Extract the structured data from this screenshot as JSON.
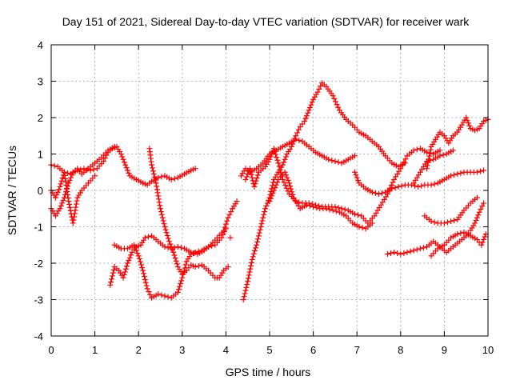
{
  "chart_data": {
    "type": "scatter",
    "title": "Day 151 of 2021, Sidereal Day-to-day VTEC variation (SDTVAR) for receiver wark",
    "xlabel": "GPS time / hours",
    "ylabel": "SDTVAR / TECUs",
    "xlim": [
      0,
      10
    ],
    "ylim": [
      -4,
      4
    ],
    "xticks": [
      "0",
      "1",
      "2",
      "3",
      "4",
      "5",
      "6",
      "7",
      "8",
      "9",
      "10"
    ],
    "yticks": [
      "-4",
      "-3",
      "-2",
      "-1",
      "0",
      "1",
      "2",
      "3",
      "4"
    ],
    "grid": true,
    "marker": "+",
    "color": "#ff0000",
    "series": [
      {
        "points": [
          [
            0.0,
            0.7
          ],
          [
            0.15,
            0.65
          ],
          [
            0.3,
            0.5
          ],
          [
            0.45,
            0.45
          ],
          [
            0.6,
            0.55
          ],
          [
            0.75,
            0.6
          ],
          [
            0.9,
            0.55
          ],
          [
            1.05,
            0.6
          ],
          [
            1.2,
            0.8
          ],
          [
            1.3,
            1.05
          ],
          [
            1.4,
            1.15
          ],
          [
            1.5,
            1.2
          ],
          [
            1.6,
            1.0
          ],
          [
            1.7,
            0.7
          ],
          [
            1.8,
            0.4
          ],
          [
            1.95,
            0.3
          ],
          [
            2.1,
            0.2
          ],
          [
            2.2,
            0.15
          ],
          [
            2.3,
            0.25
          ],
          [
            2.45,
            0.35
          ],
          [
            2.6,
            0.4
          ],
          [
            2.75,
            0.3
          ],
          [
            2.9,
            0.35
          ],
          [
            3.05,
            0.45
          ],
          [
            3.2,
            0.55
          ],
          [
            3.3,
            0.6
          ]
        ]
      },
      {
        "points": [
          [
            0.0,
            -0.5
          ],
          [
            0.1,
            -0.7
          ],
          [
            0.2,
            -0.5
          ],
          [
            0.3,
            -0.2
          ],
          [
            0.4,
            0.2
          ],
          [
            0.5,
            0.5
          ],
          [
            0.6,
            0.6
          ],
          [
            0.7,
            0.45
          ],
          [
            0.85,
            0.6
          ],
          [
            1.0,
            0.75
          ],
          [
            1.15,
            0.9
          ],
          [
            1.3,
            1.1
          ],
          [
            1.45,
            1.2
          ]
        ]
      },
      {
        "points": [
          [
            0.0,
            0.0
          ],
          [
            0.1,
            -0.2
          ],
          [
            0.2,
            0.1
          ],
          [
            0.3,
            0.5
          ],
          [
            0.4,
            -0.3
          ],
          [
            0.5,
            -0.9
          ],
          [
            0.6,
            -0.2
          ],
          [
            0.7,
            0.0
          ],
          [
            0.85,
            0.2
          ],
          [
            1.0,
            0.4
          ]
        ]
      },
      {
        "points": [
          [
            1.35,
            -2.6
          ],
          [
            1.45,
            -2.1
          ],
          [
            1.55,
            -2.2
          ],
          [
            1.65,
            -2.4
          ],
          [
            1.75,
            -2.0
          ],
          [
            1.85,
            -1.7
          ],
          [
            1.95,
            -1.55
          ],
          [
            2.05,
            -1.5
          ],
          [
            2.15,
            -1.3
          ],
          [
            2.3,
            -1.25
          ],
          [
            2.45,
            -1.4
          ],
          [
            2.6,
            -1.55
          ],
          [
            2.75,
            -1.6
          ],
          [
            2.9,
            -1.55
          ],
          [
            3.05,
            -1.6
          ],
          [
            3.2,
            -1.7
          ],
          [
            3.35,
            -1.75
          ],
          [
            3.5,
            -1.65
          ],
          [
            3.65,
            -1.5
          ],
          [
            3.8,
            -1.3
          ],
          [
            3.95,
            -1.1
          ],
          [
            4.05,
            -0.75
          ],
          [
            4.15,
            -0.5
          ],
          [
            4.25,
            -0.3
          ]
        ]
      },
      {
        "points": [
          [
            1.45,
            -1.5
          ],
          [
            1.6,
            -1.6
          ],
          [
            1.75,
            -1.6
          ],
          [
            1.9,
            -1.5
          ],
          [
            2.0,
            -1.8
          ],
          [
            2.1,
            -2.2
          ],
          [
            2.2,
            -2.7
          ],
          [
            2.3,
            -2.95
          ],
          [
            2.45,
            -2.85
          ],
          [
            2.6,
            -2.9
          ],
          [
            2.75,
            -2.95
          ],
          [
            2.9,
            -2.8
          ],
          [
            3.0,
            -2.4
          ],
          [
            3.1,
            -1.95
          ],
          [
            3.2,
            -1.75
          ],
          [
            3.3,
            -1.7
          ],
          [
            3.45,
            -1.65
          ],
          [
            3.6,
            -1.55
          ],
          [
            3.75,
            -1.5
          ],
          [
            3.9,
            -1.3
          ],
          [
            4.0,
            -1.05
          ]
        ]
      },
      {
        "points": [
          [
            2.25,
            1.15
          ],
          [
            2.3,
            0.7
          ],
          [
            2.4,
            0.2
          ],
          [
            2.5,
            -0.5
          ],
          [
            2.6,
            -1.0
          ],
          [
            2.7,
            -1.4
          ],
          [
            2.8,
            -1.7
          ],
          [
            2.9,
            -2.1
          ],
          [
            3.0,
            -2.3
          ],
          [
            3.1,
            -2.2
          ],
          [
            3.2,
            -2.05
          ],
          [
            3.3,
            -2.1
          ],
          [
            3.45,
            -2.05
          ],
          [
            3.6,
            -2.2
          ],
          [
            3.75,
            -2.4
          ],
          [
            3.85,
            -2.4
          ],
          [
            3.95,
            -2.2
          ],
          [
            4.05,
            -2.1
          ]
        ]
      },
      {
        "points": [
          [
            4.1,
            -1.3
          ]
        ]
      },
      {
        "points": [
          [
            4.35,
            0.4
          ],
          [
            4.45,
            0.6
          ],
          [
            4.55,
            0.5
          ],
          [
            4.7,
            0.6
          ],
          [
            4.85,
            0.75
          ],
          [
            5.0,
            1.0
          ],
          [
            5.15,
            1.1
          ],
          [
            5.3,
            1.2
          ],
          [
            5.45,
            1.3
          ],
          [
            5.6,
            1.4
          ],
          [
            5.75,
            1.35
          ],
          [
            5.9,
            1.2
          ],
          [
            6.05,
            1.05
          ],
          [
            6.2,
            0.95
          ],
          [
            6.35,
            0.85
          ],
          [
            6.5,
            0.8
          ],
          [
            6.65,
            0.75
          ],
          [
            6.8,
            0.85
          ],
          [
            6.95,
            0.95
          ]
        ]
      },
      {
        "points": [
          [
            4.4,
            -3.0
          ],
          [
            4.5,
            -2.5
          ],
          [
            4.6,
            -1.9
          ],
          [
            4.7,
            -1.5
          ],
          [
            4.8,
            -1.0
          ],
          [
            4.9,
            -0.5
          ],
          [
            5.0,
            -0.2
          ],
          [
            5.1,
            0.3
          ],
          [
            5.2,
            0.5
          ],
          [
            5.3,
            0.7
          ],
          [
            5.4,
            1.0
          ],
          [
            5.5,
            1.2
          ],
          [
            5.6,
            1.5
          ],
          [
            5.7,
            1.75
          ],
          [
            5.8,
            1.9
          ],
          [
            5.9,
            2.2
          ],
          [
            6.0,
            2.5
          ],
          [
            6.1,
            2.7
          ],
          [
            6.2,
            2.95
          ],
          [
            6.3,
            2.85
          ],
          [
            6.45,
            2.6
          ],
          [
            6.6,
            2.2
          ],
          [
            6.75,
            1.95
          ],
          [
            6.9,
            1.8
          ],
          [
            7.05,
            1.6
          ],
          [
            7.2,
            1.5
          ],
          [
            7.35,
            1.35
          ],
          [
            7.5,
            1.2
          ],
          [
            7.65,
            0.95
          ],
          [
            7.8,
            0.75
          ],
          [
            7.95,
            0.65
          ],
          [
            8.1,
            0.75
          ]
        ]
      },
      {
        "points": [
          [
            4.45,
            0.3
          ],
          [
            4.55,
            0.6
          ],
          [
            4.65,
            0.1
          ],
          [
            4.75,
            0.5
          ],
          [
            4.9,
            0.65
          ],
          [
            5.0,
            0.85
          ],
          [
            5.1,
            1.15
          ],
          [
            5.2,
            0.75
          ],
          [
            5.3,
            0.3
          ],
          [
            5.45,
            -0.1
          ],
          [
            5.6,
            -0.3
          ],
          [
            5.75,
            -0.35
          ],
          [
            5.9,
            -0.35
          ],
          [
            6.05,
            -0.4
          ],
          [
            6.2,
            -0.45
          ],
          [
            6.35,
            -0.45
          ],
          [
            6.5,
            -0.45
          ],
          [
            6.65,
            -0.5
          ],
          [
            6.8,
            -0.55
          ],
          [
            6.95,
            -0.65
          ],
          [
            7.1,
            -0.7
          ],
          [
            7.25,
            -0.9
          ],
          [
            7.4,
            -0.7
          ],
          [
            7.55,
            -0.4
          ],
          [
            7.7,
            -0.1
          ],
          [
            7.85,
            0.3
          ],
          [
            8.0,
            0.6
          ],
          [
            8.15,
            0.95
          ],
          [
            8.3,
            1.1
          ],
          [
            8.45,
            1.15
          ],
          [
            8.6,
            1.05
          ],
          [
            8.75,
            1.0
          ],
          [
            8.9,
            1.1
          ]
        ]
      },
      {
        "points": [
          [
            5.0,
            -0.3
          ],
          [
            5.1,
            0.0
          ],
          [
            5.2,
            0.3
          ],
          [
            5.35,
            0.5
          ],
          [
            5.45,
            0.2
          ],
          [
            5.55,
            -0.2
          ],
          [
            5.7,
            -0.5
          ],
          [
            5.85,
            -0.4
          ],
          [
            6.0,
            -0.45
          ],
          [
            6.15,
            -0.5
          ],
          [
            6.3,
            -0.5
          ],
          [
            6.45,
            -0.55
          ],
          [
            6.6,
            -0.6
          ],
          [
            6.75,
            -0.7
          ],
          [
            6.9,
            -0.9
          ],
          [
            7.05,
            -1.0
          ],
          [
            7.2,
            -1.05
          ],
          [
            7.35,
            -0.9
          ]
        ]
      },
      {
        "points": [
          [
            6.95,
            0.5
          ],
          [
            7.05,
            0.2
          ],
          [
            7.2,
            0.05
          ],
          [
            7.35,
            -0.05
          ],
          [
            7.5,
            -0.1
          ],
          [
            7.65,
            -0.05
          ],
          [
            7.8,
            0.05
          ],
          [
            7.95,
            0.1
          ],
          [
            8.1,
            0.15
          ],
          [
            8.25,
            0.15
          ],
          [
            8.4,
            0.1
          ],
          [
            8.55,
            0.15
          ],
          [
            8.7,
            0.15
          ],
          [
            8.85,
            0.2
          ],
          [
            9.0,
            0.3
          ],
          [
            9.15,
            0.4
          ],
          [
            9.3,
            0.45
          ],
          [
            9.45,
            0.5
          ],
          [
            9.6,
            0.5
          ],
          [
            9.75,
            0.5
          ],
          [
            9.9,
            0.55
          ]
        ]
      },
      {
        "points": [
          [
            7.7,
            -1.75
          ],
          [
            7.85,
            -1.7
          ],
          [
            8.0,
            -1.75
          ],
          [
            8.15,
            -1.7
          ],
          [
            8.3,
            -1.65
          ],
          [
            8.45,
            -1.6
          ],
          [
            8.6,
            -1.55
          ],
          [
            8.75,
            -1.4
          ],
          [
            8.9,
            -1.55
          ],
          [
            9.05,
            -1.7
          ],
          [
            9.2,
            -1.55
          ],
          [
            9.35,
            -1.4
          ],
          [
            9.5,
            -1.25
          ],
          [
            9.6,
            -1.1
          ],
          [
            9.7,
            -0.9
          ],
          [
            9.8,
            -0.6
          ],
          [
            9.9,
            -0.35
          ]
        ]
      },
      {
        "points": [
          [
            8.55,
            -0.7
          ],
          [
            8.7,
            -0.85
          ],
          [
            8.85,
            -0.9
          ],
          [
            9.0,
            -0.9
          ],
          [
            9.15,
            -0.85
          ],
          [
            9.3,
            -0.8
          ],
          [
            9.45,
            -0.55
          ],
          [
            9.6,
            -0.35
          ],
          [
            9.75,
            -0.2
          ]
        ]
      },
      {
        "points": [
          [
            8.6,
            0.6
          ],
          [
            8.7,
            1.2
          ],
          [
            8.8,
            1.4
          ],
          [
            8.9,
            1.6
          ],
          [
            9.0,
            1.5
          ],
          [
            9.1,
            1.3
          ],
          [
            9.2,
            1.5
          ],
          [
            9.3,
            1.6
          ],
          [
            9.4,
            1.8
          ],
          [
            9.5,
            2.0
          ],
          [
            9.6,
            1.7
          ],
          [
            9.7,
            1.65
          ],
          [
            9.8,
            1.7
          ],
          [
            9.9,
            1.9
          ],
          [
            10.0,
            1.95
          ]
        ]
      },
      {
        "points": [
          [
            8.3,
            0.2
          ],
          [
            8.45,
            0.5
          ],
          [
            8.6,
            0.8
          ],
          [
            8.75,
            0.85
          ],
          [
            8.9,
            0.95
          ],
          [
            9.05,
            1.0
          ],
          [
            9.2,
            1.1
          ]
        ]
      },
      {
        "points": [
          [
            8.7,
            -1.8
          ],
          [
            8.85,
            -1.6
          ],
          [
            9.0,
            -1.5
          ],
          [
            9.15,
            -1.3
          ],
          [
            9.3,
            -1.2
          ],
          [
            9.45,
            -1.15
          ],
          [
            9.6,
            -1.25
          ],
          [
            9.75,
            -1.35
          ],
          [
            9.85,
            -1.5
          ],
          [
            9.95,
            -1.2
          ]
        ]
      }
    ]
  }
}
